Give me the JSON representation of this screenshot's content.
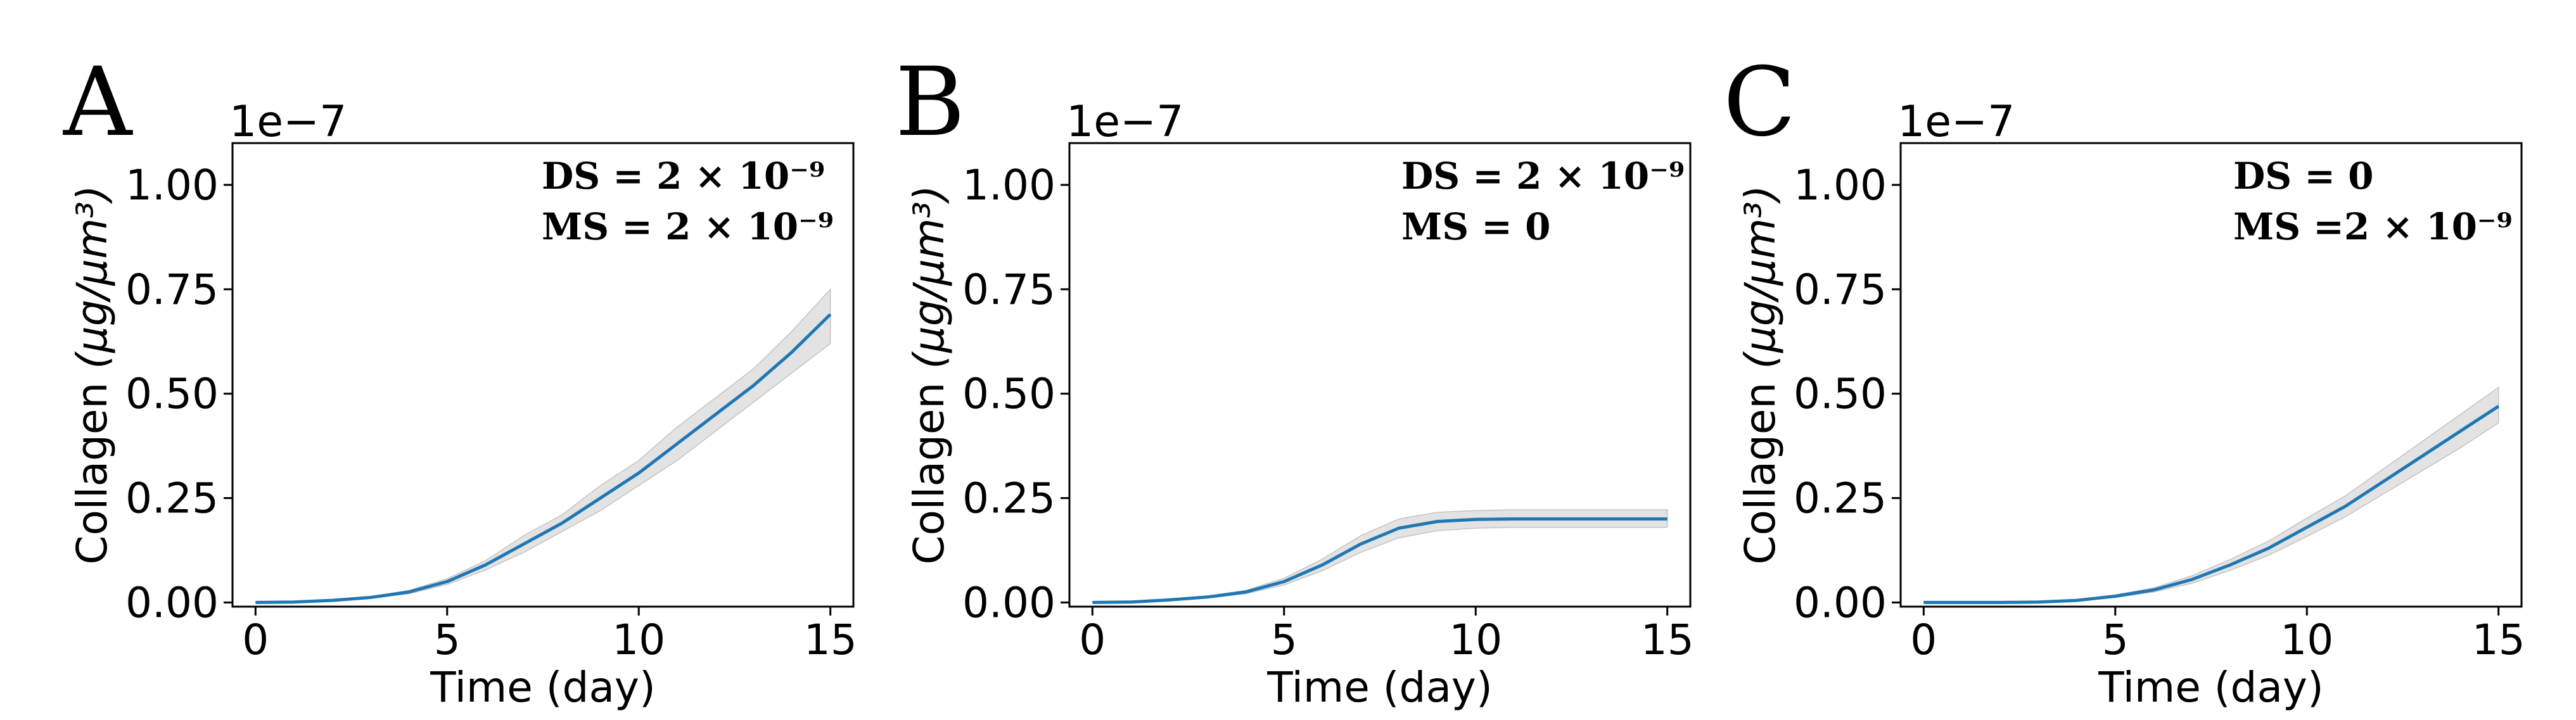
{
  "chart_data": [
    {
      "type": "line",
      "panel_label": "A",
      "offset_text": "1e−7",
      "xlabel": "Time (day)",
      "ylabel": "Collagen",
      "ylabel_unit": "(μg/μm³)",
      "xlim": [
        -0.6,
        15.6
      ],
      "ylim": [
        -0.01,
        1.1
      ],
      "x_ticks": [
        0,
        5,
        10,
        15
      ],
      "x_tick_labels": [
        "0",
        "5",
        "10",
        "15"
      ],
      "y_ticks": [
        0,
        0.25,
        0.5,
        0.75,
        1.0
      ],
      "y_tick_labels": [
        "0.00",
        "0.25",
        "0.50",
        "0.75",
        "1.00"
      ],
      "annotations": [
        "DS = 2 × 10⁻⁹",
        "MS = 2 × 10⁻⁹"
      ],
      "series": [
        {
          "x": [
            0,
            1,
            2,
            3,
            4,
            5,
            6,
            7,
            8,
            9,
            10,
            11,
            12,
            13,
            14,
            15
          ],
          "y": [
            0,
            0.001,
            0.005,
            0.012,
            0.025,
            0.05,
            0.09,
            0.14,
            0.19,
            0.25,
            0.31,
            0.38,
            0.45,
            0.52,
            0.6,
            0.69
          ],
          "y_lower": [
            0,
            0.001,
            0.004,
            0.01,
            0.021,
            0.043,
            0.078,
            0.12,
            0.17,
            0.22,
            0.28,
            0.34,
            0.41,
            0.48,
            0.55,
            0.62
          ],
          "y_upper": [
            0,
            0.002,
            0.006,
            0.014,
            0.029,
            0.057,
            0.1,
            0.16,
            0.21,
            0.28,
            0.34,
            0.42,
            0.49,
            0.56,
            0.65,
            0.75
          ]
        }
      ]
    },
    {
      "type": "line",
      "panel_label": "B",
      "offset_text": "1e−7",
      "xlabel": "Time (day)",
      "ylabel": "Collagen",
      "ylabel_unit": "(μg/μm³)",
      "xlim": [
        -0.6,
        15.6
      ],
      "ylim": [
        -0.01,
        1.1
      ],
      "x_ticks": [
        0,
        5,
        10,
        15
      ],
      "x_tick_labels": [
        "0",
        "5",
        "10",
        "15"
      ],
      "y_ticks": [
        0,
        0.25,
        0.5,
        0.75,
        1.0
      ],
      "y_tick_labels": [
        "0.00",
        "0.25",
        "0.50",
        "0.75",
        "1.00"
      ],
      "annotations": [
        "DS = 2 × 10⁻⁹",
        "MS = 0"
      ],
      "series": [
        {
          "x": [
            0,
            1,
            2,
            3,
            4,
            5,
            6,
            7,
            8,
            9,
            10,
            11,
            12,
            13,
            14,
            15
          ],
          "y": [
            0,
            0.001,
            0.006,
            0.013,
            0.025,
            0.05,
            0.09,
            0.14,
            0.178,
            0.194,
            0.199,
            0.2,
            0.2,
            0.2,
            0.2,
            0.2
          ],
          "y_lower": [
            0,
            0.001,
            0.005,
            0.011,
            0.021,
            0.042,
            0.076,
            0.12,
            0.155,
            0.172,
            0.178,
            0.18,
            0.18,
            0.18,
            0.18,
            0.18
          ],
          "y_upper": [
            0,
            0.002,
            0.007,
            0.015,
            0.029,
            0.058,
            0.104,
            0.16,
            0.2,
            0.216,
            0.22,
            0.222,
            0.222,
            0.222,
            0.222,
            0.222
          ]
        }
      ]
    },
    {
      "type": "line",
      "panel_label": "C",
      "offset_text": "1e−7",
      "xlabel": "Time (day)",
      "ylabel": "Collagen",
      "ylabel_unit": "(μg/μm³)",
      "xlim": [
        -0.6,
        15.6
      ],
      "ylim": [
        -0.01,
        1.1
      ],
      "x_ticks": [
        0,
        5,
        10,
        15
      ],
      "x_tick_labels": [
        "0",
        "5",
        "10",
        "15"
      ],
      "y_ticks": [
        0,
        0.25,
        0.5,
        0.75,
        1.0
      ],
      "y_tick_labels": [
        "0.00",
        "0.25",
        "0.50",
        "0.75",
        "1.00"
      ],
      "annotations": [
        "DS = 0",
        "MS =2 × 10⁻⁹"
      ],
      "series": [
        {
          "x": [
            0,
            1,
            2,
            3,
            4,
            5,
            6,
            7,
            8,
            9,
            10,
            11,
            12,
            13,
            14,
            15
          ],
          "y": [
            0,
            0,
            0,
            0.001,
            0.005,
            0.015,
            0.03,
            0.055,
            0.09,
            0.13,
            0.18,
            0.23,
            0.29,
            0.35,
            0.41,
            0.47
          ],
          "y_lower": [
            0,
            0,
            0,
            0.001,
            0.004,
            0.012,
            0.025,
            0.046,
            0.077,
            0.113,
            0.158,
            0.205,
            0.26,
            0.315,
            0.37,
            0.43
          ],
          "y_upper": [
            0,
            0,
            0,
            0.001,
            0.006,
            0.018,
            0.035,
            0.064,
            0.103,
            0.147,
            0.202,
            0.255,
            0.32,
            0.385,
            0.45,
            0.515
          ]
        }
      ]
    }
  ],
  "colors": {
    "line": "#1f77b4",
    "band": "#d9d9d9",
    "axis": "#000000"
  }
}
